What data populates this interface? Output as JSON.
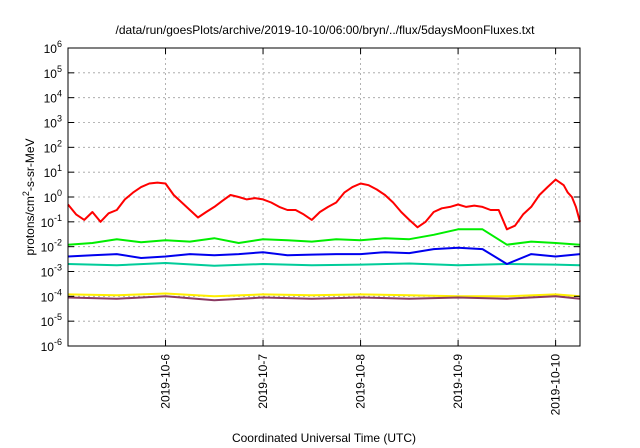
{
  "chart_data": {
    "type": "line",
    "title": "/data/run/goesPlots/archive/2019-10-10/06:00/bryn/../flux/5daysMoonFluxes.txt",
    "xlabel": "Coordinated Universal Time (UTC)",
    "ylabel": {
      "prefix": "protons/cm",
      "exponent": "2",
      "suffix": "-s-sr-MeV"
    },
    "yscale": "log",
    "ylim": [
      1e-06,
      1000000.0
    ],
    "xlim": [
      "2019-10-05T00:00",
      "2019-10-10T06:00"
    ],
    "grid": true,
    "yticks": [
      {
        "base": "10",
        "exp": "-6",
        "value": -6
      },
      {
        "base": "10",
        "exp": "-5",
        "value": -5
      },
      {
        "base": "10",
        "exp": "-4",
        "value": -4
      },
      {
        "base": "10",
        "exp": "-3",
        "value": -3
      },
      {
        "base": "10",
        "exp": "-2",
        "value": -2
      },
      {
        "base": "10",
        "exp": "-1",
        "value": -1
      },
      {
        "base": "10",
        "exp": "0",
        "value": 0
      },
      {
        "base": "10",
        "exp": "1",
        "value": 1
      },
      {
        "base": "10",
        "exp": "2",
        "value": 2
      },
      {
        "base": "10",
        "exp": "3",
        "value": 3
      },
      {
        "base": "10",
        "exp": "4",
        "value": 4
      },
      {
        "base": "10",
        "exp": "5",
        "value": 5
      },
      {
        "base": "10",
        "exp": "6",
        "value": 6
      }
    ],
    "xticks": [
      {
        "label": "2019-10-6",
        "value": "2019-10-06T00:00"
      },
      {
        "label": "2019-10-7",
        "value": "2019-10-07T00:00"
      },
      {
        "label": "2019-10-8",
        "value": "2019-10-08T00:00"
      },
      {
        "label": "2019-10-9",
        "value": "2019-10-09T00:00"
      },
      {
        "label": "2019-10-10",
        "value": "2019-10-10T00:00"
      }
    ],
    "series": [
      {
        "color": "#ff0000",
        "x": [
          "2019-10-05T00:00",
          "2019-10-05T02:00",
          "2019-10-05T04:00",
          "2019-10-05T06:00",
          "2019-10-05T08:00",
          "2019-10-05T10:00",
          "2019-10-05T12:00",
          "2019-10-05T14:00",
          "2019-10-05T16:00",
          "2019-10-05T18:00",
          "2019-10-05T20:00",
          "2019-10-05T22:00",
          "2019-10-06T00:00",
          "2019-10-06T02:00",
          "2019-10-06T04:00",
          "2019-10-06T06:00",
          "2019-10-06T08:00",
          "2019-10-06T10:00",
          "2019-10-06T12:00",
          "2019-10-06T14:00",
          "2019-10-06T16:00",
          "2019-10-06T18:00",
          "2019-10-06T20:00",
          "2019-10-06T22:00",
          "2019-10-07T00:00",
          "2019-10-07T02:00",
          "2019-10-07T04:00",
          "2019-10-07T06:00",
          "2019-10-07T08:00",
          "2019-10-07T10:00",
          "2019-10-07T12:00",
          "2019-10-07T14:00",
          "2019-10-07T16:00",
          "2019-10-07T18:00",
          "2019-10-07T20:00",
          "2019-10-07T22:00",
          "2019-10-08T00:00",
          "2019-10-08T02:00",
          "2019-10-08T04:00",
          "2019-10-08T06:00",
          "2019-10-08T08:00",
          "2019-10-08T10:00",
          "2019-10-08T12:00",
          "2019-10-08T14:00",
          "2019-10-08T16:00",
          "2019-10-08T18:00",
          "2019-10-08T20:00",
          "2019-10-08T22:00",
          "2019-10-09T00:00",
          "2019-10-09T02:00",
          "2019-10-09T04:00",
          "2019-10-09T06:00",
          "2019-10-09T08:00",
          "2019-10-09T10:00",
          "2019-10-09T12:00",
          "2019-10-09T14:00",
          "2019-10-09T16:00",
          "2019-10-09T18:00",
          "2019-10-09T20:00",
          "2019-10-09T22:00",
          "2019-10-10T00:00",
          "2019-10-10T02:00",
          "2019-10-10T03:00",
          "2019-10-10T04:00",
          "2019-10-10T05:00",
          "2019-10-10T06:00"
        ],
        "y": [
          0.5,
          0.2,
          0.12,
          0.25,
          0.1,
          0.22,
          0.3,
          0.8,
          1.5,
          2.5,
          3.5,
          3.8,
          3.5,
          1.2,
          0.6,
          0.3,
          0.15,
          0.25,
          0.4,
          0.7,
          1.2,
          1.0,
          0.8,
          0.9,
          0.8,
          0.6,
          0.4,
          0.3,
          0.3,
          0.2,
          0.12,
          0.25,
          0.4,
          0.6,
          1.5,
          2.5,
          3.5,
          3.0,
          2.0,
          1.2,
          0.6,
          0.25,
          0.12,
          0.06,
          0.1,
          0.25,
          0.35,
          0.4,
          0.5,
          0.4,
          0.45,
          0.4,
          0.3,
          0.3,
          0.05,
          0.07,
          0.2,
          0.4,
          1.2,
          2.5,
          5.0,
          3.0,
          1.5,
          1.0,
          0.4,
          0.1
        ]
      },
      {
        "color": "#00ee00",
        "x": [
          "2019-10-05T00:00",
          "2019-10-05T06:00",
          "2019-10-05T12:00",
          "2019-10-05T18:00",
          "2019-10-06T00:00",
          "2019-10-06T06:00",
          "2019-10-06T12:00",
          "2019-10-06T18:00",
          "2019-10-07T00:00",
          "2019-10-07T06:00",
          "2019-10-07T12:00",
          "2019-10-07T18:00",
          "2019-10-08T00:00",
          "2019-10-08T06:00",
          "2019-10-08T12:00",
          "2019-10-08T18:00",
          "2019-10-09T00:00",
          "2019-10-09T06:00",
          "2019-10-09T12:00",
          "2019-10-09T18:00",
          "2019-10-10T00:00",
          "2019-10-10T06:00"
        ],
        "y": [
          0.012,
          0.014,
          0.02,
          0.015,
          0.018,
          0.016,
          0.022,
          0.014,
          0.02,
          0.018,
          0.016,
          0.02,
          0.018,
          0.022,
          0.02,
          0.03,
          0.05,
          0.05,
          0.012,
          0.016,
          0.014,
          0.012
        ]
      },
      {
        "color": "#00cc99",
        "x": [
          "2019-10-05T00:00",
          "2019-10-05T12:00",
          "2019-10-06T00:00",
          "2019-10-06T12:00",
          "2019-10-07T00:00",
          "2019-10-07T12:00",
          "2019-10-08T00:00",
          "2019-10-08T12:00",
          "2019-10-09T00:00",
          "2019-10-09T12:00",
          "2019-10-10T00:00",
          "2019-10-10T06:00"
        ],
        "y": [
          0.002,
          0.0018,
          0.0022,
          0.0017,
          0.002,
          0.0018,
          0.0019,
          0.0021,
          0.0018,
          0.002,
          0.0019,
          0.0018
        ]
      },
      {
        "color": "#0000ee",
        "x": [
          "2019-10-05T00:00",
          "2019-10-05T06:00",
          "2019-10-05T12:00",
          "2019-10-05T18:00",
          "2019-10-06T00:00",
          "2019-10-06T06:00",
          "2019-10-06T12:00",
          "2019-10-06T18:00",
          "2019-10-07T00:00",
          "2019-10-07T06:00",
          "2019-10-07T12:00",
          "2019-10-07T18:00",
          "2019-10-08T00:00",
          "2019-10-08T06:00",
          "2019-10-08T12:00",
          "2019-10-08T18:00",
          "2019-10-09T00:00",
          "2019-10-09T06:00",
          "2019-10-09T12:00",
          "2019-10-09T18:00",
          "2019-10-10T00:00",
          "2019-10-10T06:00"
        ],
        "y": [
          0.004,
          0.0045,
          0.005,
          0.0035,
          0.004,
          0.005,
          0.0045,
          0.005,
          0.006,
          0.0045,
          0.0048,
          0.005,
          0.005,
          0.006,
          0.0055,
          0.008,
          0.009,
          0.008,
          0.002,
          0.005,
          0.004,
          0.005
        ]
      },
      {
        "color": "#ffee00",
        "x": [
          "2019-10-05T00:00",
          "2019-10-05T12:00",
          "2019-10-06T00:00",
          "2019-10-06T12:00",
          "2019-10-07T00:00",
          "2019-10-07T12:00",
          "2019-10-08T00:00",
          "2019-10-08T12:00",
          "2019-10-09T00:00",
          "2019-10-09T12:00",
          "2019-10-10T00:00",
          "2019-10-10T06:00"
        ],
        "y": [
          0.00012,
          0.00011,
          0.00013,
          0.0001,
          0.00012,
          0.00011,
          0.00012,
          0.00011,
          0.0001,
          0.0001,
          0.00012,
          0.0001
        ]
      },
      {
        "color": "#8b3a62",
        "x": [
          "2019-10-05T00:00",
          "2019-10-05T12:00",
          "2019-10-06T00:00",
          "2019-10-06T12:00",
          "2019-10-07T00:00",
          "2019-10-07T12:00",
          "2019-10-08T00:00",
          "2019-10-08T12:00",
          "2019-10-09T00:00",
          "2019-10-09T12:00",
          "2019-10-10T00:00",
          "2019-10-10T06:00"
        ],
        "y": [
          9e-05,
          8e-05,
          0.0001,
          7e-05,
          9e-05,
          8e-05,
          9e-05,
          8e-05,
          9e-05,
          8e-05,
          0.0001,
          8e-05
        ]
      }
    ]
  }
}
